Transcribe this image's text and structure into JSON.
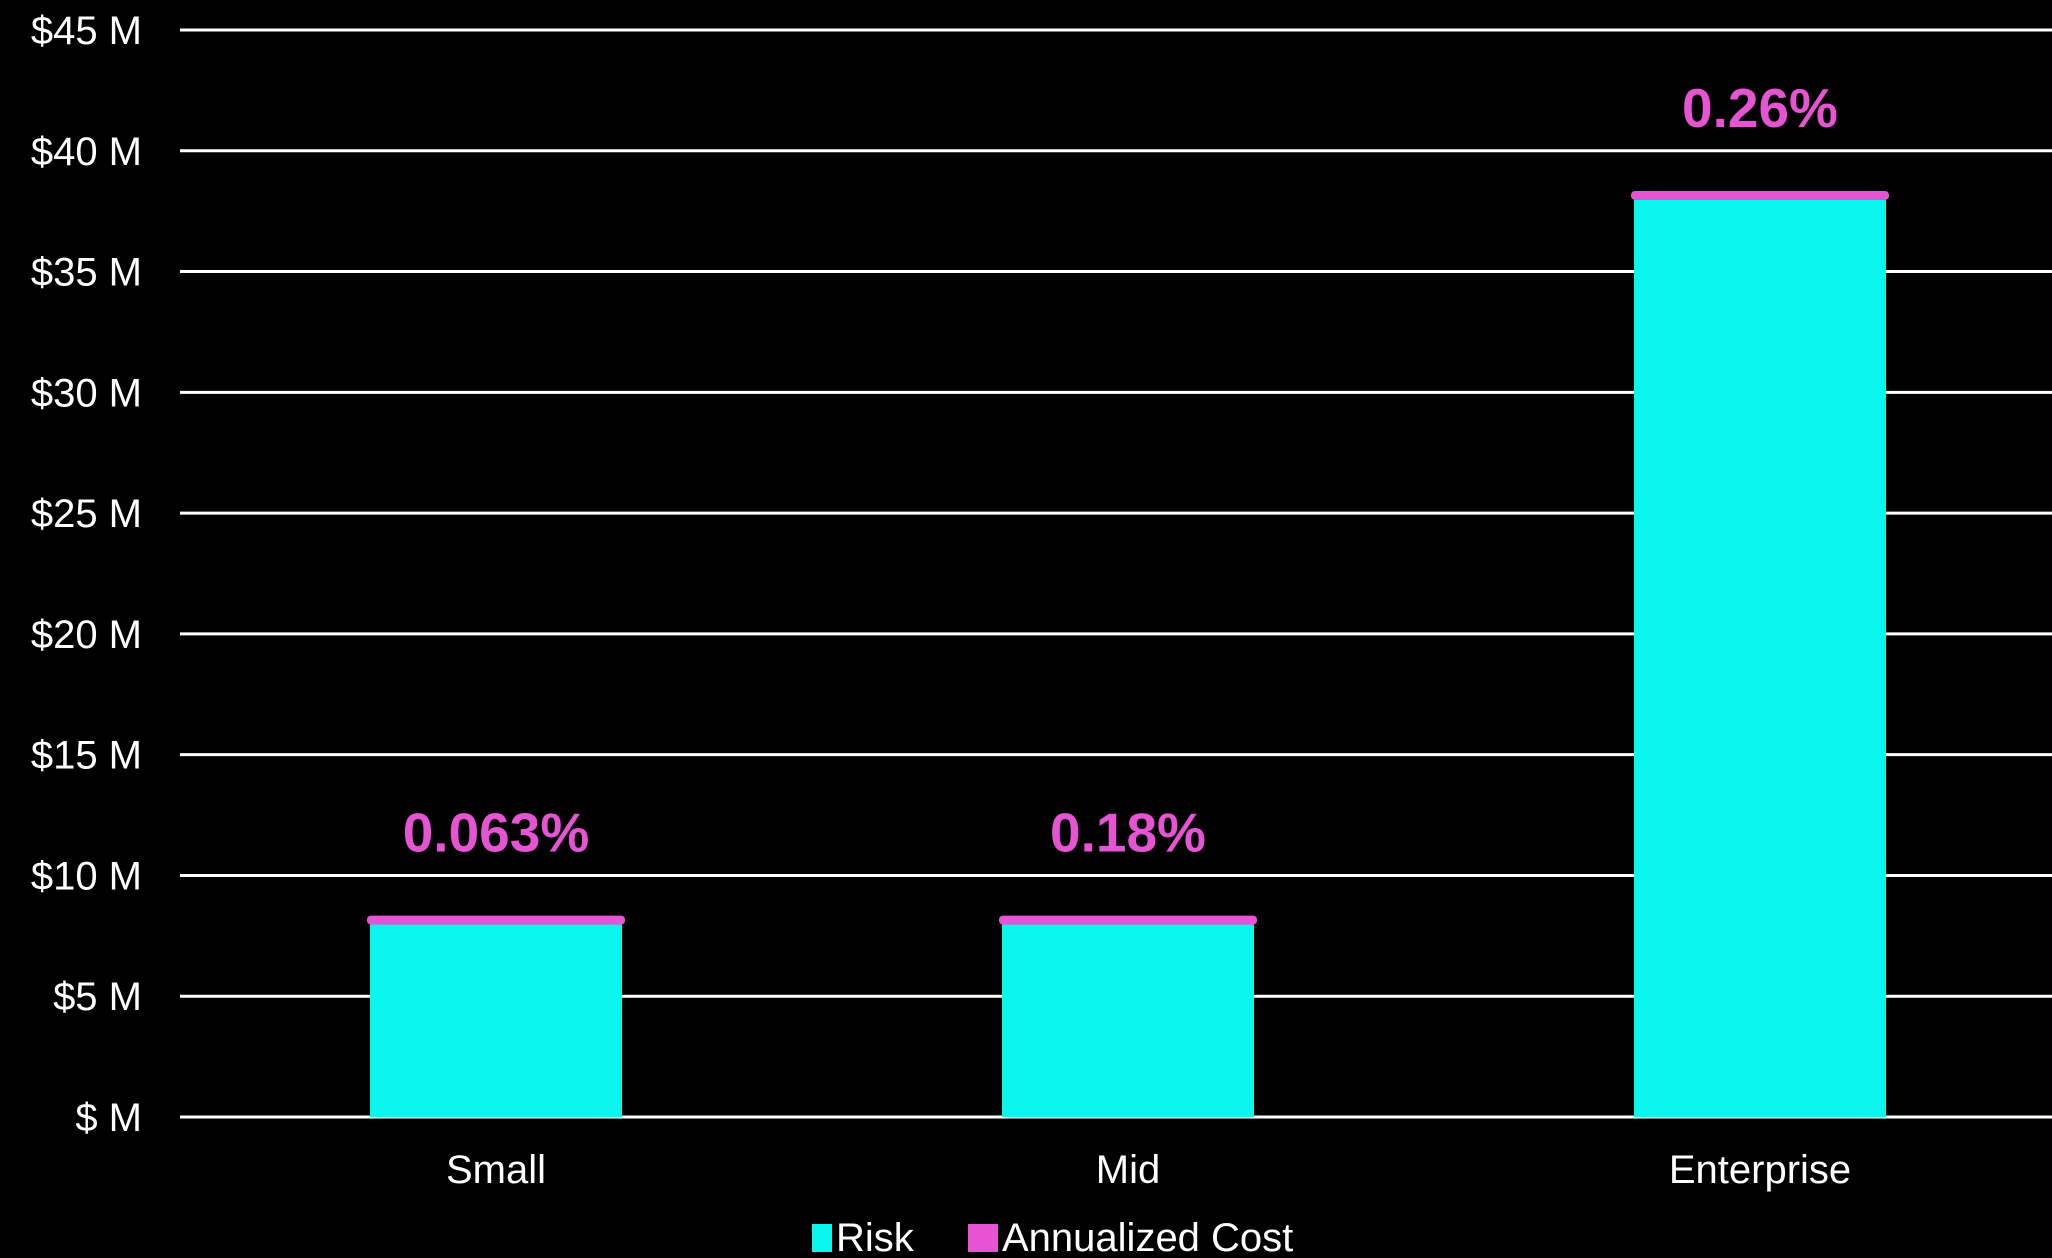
{
  "chart_data": {
    "type": "bar",
    "stacked": true,
    "title": "",
    "xlabel": "",
    "ylabel": "",
    "categories": [
      "Small",
      "Mid",
      "Enterprise"
    ],
    "series": [
      {
        "name": "Risk",
        "color": "#0af5ec",
        "values": [
          8.0,
          8.0,
          38.0
        ]
      },
      {
        "name": "Annualized Cost",
        "color": "#e654d4",
        "values": [
          0.3,
          0.3,
          0.3
        ]
      }
    ],
    "data_labels": [
      "0.063%",
      "0.18%",
      "0.26%"
    ],
    "data_label_color": "#e654d4",
    "ylim": [
      0,
      45
    ],
    "y_ticks": [
      {
        "value": 0,
        "label": "$ M"
      },
      {
        "value": 5,
        "label": "$5 M"
      },
      {
        "value": 10,
        "label": "$10 M"
      },
      {
        "value": 15,
        "label": "$15 M"
      },
      {
        "value": 20,
        "label": "$20 M"
      },
      {
        "value": 25,
        "label": "$25 M"
      },
      {
        "value": 30,
        "label": "$30 M"
      },
      {
        "value": 35,
        "label": "$35 M"
      },
      {
        "value": 40,
        "label": "$40 M"
      },
      {
        "value": 45,
        "label": "$45 M"
      }
    ],
    "grid": true,
    "grid_color": "#ffffff",
    "background": "#000000",
    "legend_position": "bottom"
  }
}
